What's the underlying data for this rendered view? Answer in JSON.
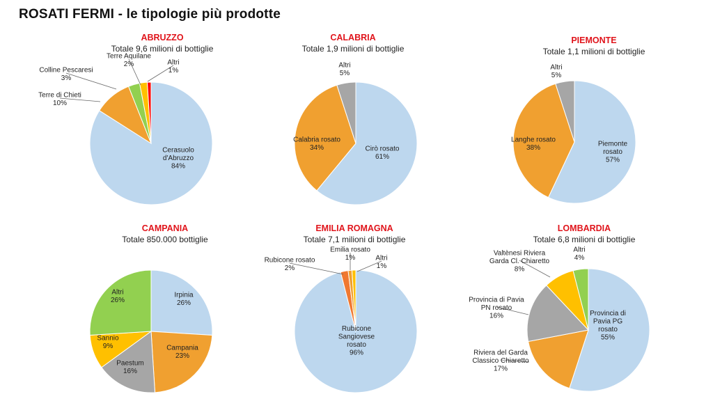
{
  "title": "ROSATI FERMI - le tipologie più prodotte",
  "colors": {
    "region_title": "#e0141b",
    "text": "#222222",
    "slice_border": "#ffffff",
    "leader": "#666666"
  },
  "chart_data": [
    {
      "type": "pie",
      "title": "ABRUZZO",
      "subtitle": "Totale 9,6 milioni di bottiglie",
      "slices": [
        {
          "label": [
            "Cerasuolo",
            "d'Abruzzo"
          ],
          "pct": "84%",
          "value": 84,
          "color": "#bdd7ee"
        },
        {
          "label": [
            "Terre di Chieti"
          ],
          "pct": "10%",
          "value": 10,
          "color": "#f0a030"
        },
        {
          "label": [
            "Colline Pescaresi"
          ],
          "pct": "3%",
          "value": 3,
          "color": "#92d050"
        },
        {
          "label": [
            "Terre Aquilane"
          ],
          "pct": "2%",
          "value": 2,
          "color": "#ffc000"
        },
        {
          "label": [
            "Altri"
          ],
          "pct": "1%",
          "value": 1,
          "color": "#ff0000"
        }
      ]
    },
    {
      "type": "pie",
      "title": "CALABRIA",
      "subtitle": "Totale 1,9 milioni di bottiglie",
      "slices": [
        {
          "label": [
            "Cirò rosato"
          ],
          "pct": "61%",
          "value": 61,
          "color": "#bdd7ee"
        },
        {
          "label": [
            "Calabria rosato"
          ],
          "pct": "34%",
          "value": 34,
          "color": "#f0a030"
        },
        {
          "label": [
            "Altri"
          ],
          "pct": "5%",
          "value": 5,
          "color": "#a6a6a6"
        }
      ]
    },
    {
      "type": "pie",
      "title": "PIEMONTE",
      "subtitle": "Totale 1,1 milioni di bottiglie",
      "slices": [
        {
          "label": [
            "Piemonte",
            "rosato"
          ],
          "pct": "57%",
          "value": 57,
          "color": "#bdd7ee"
        },
        {
          "label": [
            "Langhe rosato"
          ],
          "pct": "38%",
          "value": 38,
          "color": "#f0a030"
        },
        {
          "label": [
            "Altri"
          ],
          "pct": "5%",
          "value": 5,
          "color": "#a6a6a6"
        }
      ]
    },
    {
      "type": "pie",
      "title": "CAMPANIA",
      "subtitle": "Totale 850.000 bottiglie",
      "slices": [
        {
          "label": [
            "Irpinia"
          ],
          "pct": "26%",
          "value": 26,
          "color": "#bdd7ee"
        },
        {
          "label": [
            "Campania"
          ],
          "pct": "23%",
          "value": 23,
          "color": "#f0a030"
        },
        {
          "label": [
            "Paestum"
          ],
          "pct": "16%",
          "value": 16,
          "color": "#a6a6a6"
        },
        {
          "label": [
            "Sannio"
          ],
          "pct": "9%",
          "value": 9,
          "color": "#ffc000"
        },
        {
          "label": [
            "Altri"
          ],
          "pct": "26%",
          "value": 26,
          "color": "#92d050"
        }
      ]
    },
    {
      "type": "pie",
      "title": "EMILIA ROMAGNA",
      "subtitle": "Totale 7,1 milioni di bottiglie",
      "slices": [
        {
          "label": [
            "Rubicone",
            "Sangiovese",
            "rosato"
          ],
          "pct": "96%",
          "value": 96,
          "color": "#bdd7ee"
        },
        {
          "label": [
            "Rubicone rosato"
          ],
          "pct": "2%",
          "value": 2,
          "color": "#f07830"
        },
        {
          "label": [
            "Emilia rosato"
          ],
          "pct": "1%",
          "value": 1,
          "color": "#f0a030"
        },
        {
          "label": [
            "Altri"
          ],
          "pct": "1%",
          "value": 1,
          "color": "#ffc000"
        }
      ]
    },
    {
      "type": "pie",
      "title": "LOMBARDIA",
      "subtitle": "Totale 6,8 milioni di bottiglie",
      "slices": [
        {
          "label": [
            "Provincia di",
            "Pavia PG",
            "rosato"
          ],
          "pct": "55%",
          "value": 55,
          "color": "#bdd7ee"
        },
        {
          "label": [
            "Riviera del Garda",
            "Classico Chiaretto"
          ],
          "pct": "17%",
          "value": 17,
          "color": "#f0a030"
        },
        {
          "label": [
            "Provincia di Pavia",
            "PN rosato"
          ],
          "pct": "16%",
          "value": 16,
          "color": "#a6a6a6"
        },
        {
          "label": [
            "Valtènesi Riviera",
            "Garda Cl. Chiaretto"
          ],
          "pct": "8%",
          "value": 8,
          "color": "#ffc000"
        },
        {
          "label": [
            "Altri"
          ],
          "pct": "4%",
          "value": 4,
          "color": "#92d050"
        }
      ]
    }
  ]
}
